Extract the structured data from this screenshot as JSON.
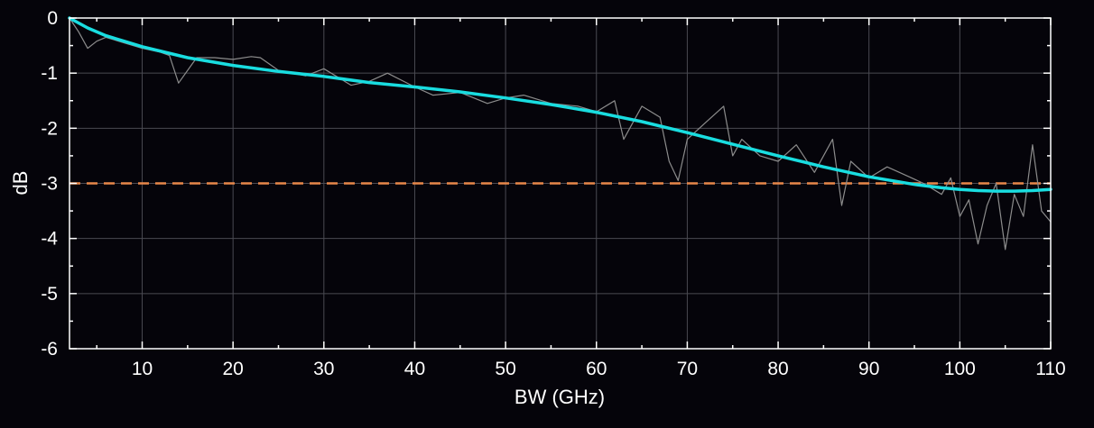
{
  "chart_data": {
    "type": "line",
    "title": "",
    "xlabel": "BW (GHz)",
    "ylabel": "dB",
    "xlim": [
      2,
      110
    ],
    "ylim": [
      -6,
      0
    ],
    "xticks": [
      10,
      20,
      30,
      40,
      50,
      60,
      70,
      80,
      90,
      100,
      110
    ],
    "yticks": [
      0,
      -1,
      -2,
      -3,
      -4,
      -5,
      -6
    ],
    "grid": true,
    "legend": "none",
    "colors": {
      "background": "#05040a",
      "grid": "#4a4a52",
      "axes": "#ffffff",
      "measured": "#8c8c8c",
      "fit": "#19dde0",
      "threshold": "#e8874a"
    },
    "reference_line": {
      "y": -3,
      "style": "dashed"
    },
    "series": [
      {
        "role": "measured",
        "x": [
          2,
          3,
          4,
          5,
          6,
          8,
          10,
          12,
          13,
          14,
          16,
          18,
          20,
          22,
          23,
          25,
          28,
          30,
          33,
          35,
          37,
          40,
          42,
          45,
          48,
          50,
          52,
          55,
          58,
          60,
          62,
          63,
          65,
          67,
          68,
          69,
          70,
          72,
          74,
          75,
          76,
          78,
          80,
          82,
          84,
          86,
          87,
          88,
          90,
          92,
          94,
          96,
          98,
          99,
          100,
          101,
          102,
          103,
          104,
          105,
          106,
          107,
          108,
          109,
          110
        ],
        "y": [
          0,
          -0.25,
          -0.55,
          -0.42,
          -0.35,
          -0.45,
          -0.55,
          -0.62,
          -0.68,
          -1.18,
          -0.72,
          -0.72,
          -0.75,
          -0.7,
          -0.72,
          -0.95,
          -1.05,
          -0.92,
          -1.22,
          -1.15,
          -1.0,
          -1.25,
          -1.4,
          -1.35,
          -1.55,
          -1.45,
          -1.4,
          -1.55,
          -1.6,
          -1.7,
          -1.5,
          -2.2,
          -1.6,
          -1.8,
          -2.6,
          -2.95,
          -2.2,
          -1.9,
          -1.6,
          -2.5,
          -2.2,
          -2.5,
          -2.6,
          -2.3,
          -2.8,
          -2.2,
          -3.4,
          -2.6,
          -2.9,
          -2.7,
          -2.85,
          -3.0,
          -3.2,
          -2.9,
          -3.6,
          -3.3,
          -4.1,
          -3.4,
          -3.0,
          -4.2,
          -3.2,
          -3.6,
          -2.3,
          -3.5,
          -3.7
        ]
      },
      {
        "role": "fit",
        "x": [
          2,
          4,
          6,
          8,
          10,
          15,
          20,
          25,
          30,
          35,
          40,
          45,
          50,
          55,
          60,
          65,
          70,
          75,
          80,
          85,
          90,
          95,
          98,
          100,
          102,
          104,
          106,
          108,
          110
        ],
        "y": [
          0,
          -0.18,
          -0.32,
          -0.42,
          -0.52,
          -0.72,
          -0.86,
          -0.97,
          -1.06,
          -1.17,
          -1.25,
          -1.34,
          -1.45,
          -1.57,
          -1.71,
          -1.88,
          -2.08,
          -2.29,
          -2.5,
          -2.7,
          -2.88,
          -3.02,
          -3.08,
          -3.11,
          -3.13,
          -3.14,
          -3.14,
          -3.13,
          -3.11
        ]
      }
    ]
  }
}
